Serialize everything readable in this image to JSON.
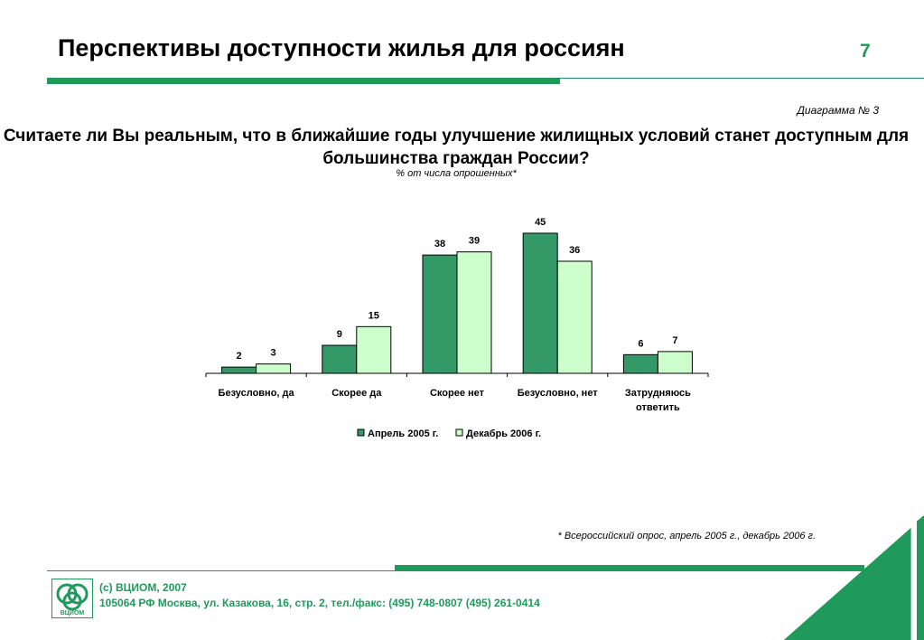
{
  "header": {
    "title": "Перспективы доступности жилья для россиян",
    "page_number": "7"
  },
  "diagram_label": "Диаграмма № 3",
  "footnote": "* Всероссийский опрос, апрель 2005 г., декабрь 2006 г.",
  "footer": {
    "copyright": "(с) ВЦИОМ, 2007",
    "address": "105064 РФ Москва, ул. Казакова, 16, стр. 2, тел./факс: (495) 748-0807 (495) 261-0414",
    "logo_text": "ВЦИОМ"
  },
  "colors": {
    "accent": "#1f9a5b",
    "series_1": "#339966",
    "series_2": "#ccffcc"
  },
  "chart_data": {
    "type": "bar",
    "title": "Считаете ли Вы реальным, что в ближайшие годы улучшение жилищных условий станет доступным для большинства граждан России?",
    "subtitle": "% от числа опрошенных*",
    "categories": [
      [
        "Безусловно, да"
      ],
      [
        "Скорее да"
      ],
      [
        "Скорее нет"
      ],
      [
        "Безусловно, нет"
      ],
      [
        "Затрудняюсь",
        "ответить"
      ]
    ],
    "series": [
      {
        "name": "Апрель 2005 г.",
        "values": [
          2,
          9,
          38,
          45,
          6
        ]
      },
      {
        "name": "Декабрь 2006 г.",
        "values": [
          3,
          15,
          39,
          36,
          7
        ]
      }
    ],
    "ylim": [
      0,
      45
    ],
    "grid": false,
    "legend": "bottom"
  }
}
